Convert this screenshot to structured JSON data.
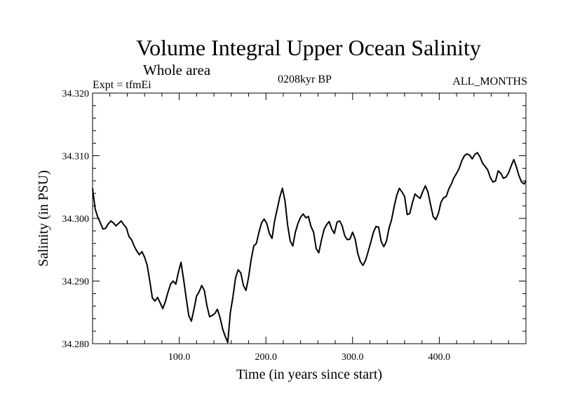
{
  "header": {
    "title": "Volume Integral Upper Ocean Salinity",
    "subtitle": "Whole area",
    "expt": "Expt = tfmEi",
    "period": "0208kyr BP",
    "months": "ALL_MONTHS"
  },
  "chart_data": {
    "type": "line",
    "title": "Volume Integral Upper Ocean Salinity",
    "xlabel": "Time (in years since start)",
    "ylabel": "Salinity (in PSU)",
    "xlim": [
      0,
      500
    ],
    "ylim": [
      34.28,
      34.32
    ],
    "x_ticks": [
      100,
      200,
      300,
      400
    ],
    "x_tick_labels": [
      "100.0",
      "200.0",
      "300.0",
      "400.0"
    ],
    "y_ticks": [
      34.28,
      34.29,
      34.3,
      34.31,
      34.32
    ],
    "y_tick_labels": [
      "34.280",
      "34.290",
      "34.300",
      "34.310",
      "34.320"
    ],
    "series": [
      {
        "color": "#000000",
        "x": [
          0,
          3,
          6,
          9,
          12,
          15,
          18,
          21,
          24,
          27,
          30,
          33,
          36,
          39,
          42,
          45,
          48,
          51,
          54,
          57,
          60,
          63,
          66,
          69,
          72,
          75,
          78,
          81,
          84,
          87,
          90,
          93,
          96,
          99,
          102,
          105,
          108,
          111,
          114,
          117,
          120,
          123,
          126,
          129,
          132,
          135,
          138,
          141,
          144,
          147,
          150,
          153,
          156,
          159,
          162,
          165,
          168,
          171,
          174,
          177,
          180,
          183,
          186,
          189,
          192,
          195,
          198,
          201,
          204,
          207,
          210,
          213,
          216,
          219,
          222,
          225,
          228,
          231,
          234,
          237,
          240,
          243,
          246,
          249,
          252,
          255,
          258,
          261,
          264,
          267,
          270,
          273,
          276,
          279,
          282,
          285,
          288,
          291,
          294,
          297,
          300,
          303,
          306,
          309,
          312,
          315,
          318,
          321,
          324,
          327,
          330,
          333,
          336,
          339,
          342,
          345,
          348,
          351,
          354,
          357,
          360,
          363,
          366,
          369,
          372,
          375,
          378,
          381,
          384,
          387,
          390,
          393,
          396,
          399,
          402,
          405,
          408,
          411,
          414,
          417,
          420,
          423,
          426,
          429,
          432,
          435,
          438,
          441,
          444,
          447,
          450,
          453,
          456,
          459,
          462,
          465,
          468,
          471,
          474,
          477,
          480,
          483,
          486,
          489,
          492,
          495,
          498,
          500
        ],
        "y": [
          34.3048,
          34.3015,
          34.3002,
          34.2993,
          34.2983,
          34.2984,
          34.2991,
          34.2996,
          34.2993,
          34.2988,
          34.2992,
          34.2996,
          34.299,
          34.2985,
          34.2971,
          34.2966,
          34.2956,
          34.2948,
          34.2942,
          34.2947,
          34.2938,
          34.2925,
          34.29,
          34.2873,
          34.2868,
          34.2874,
          34.2865,
          34.2856,
          34.2867,
          34.2882,
          34.2895,
          34.29,
          34.2895,
          34.2914,
          34.293,
          34.2903,
          34.2873,
          34.2845,
          34.2836,
          34.2855,
          34.2876,
          34.2883,
          34.2893,
          34.2885,
          34.286,
          34.2843,
          34.2845,
          34.2848,
          34.2855,
          34.2842,
          34.2824,
          34.2812,
          34.2802,
          34.285,
          34.2875,
          34.2905,
          34.2918,
          34.2913,
          34.2893,
          34.2885,
          34.2906,
          34.2935,
          34.2956,
          34.296,
          34.2978,
          34.2993,
          34.2999,
          34.2992,
          34.2976,
          34.2968,
          34.2996,
          34.3015,
          34.3034,
          34.3048,
          34.3028,
          34.299,
          34.2964,
          34.2956,
          34.2978,
          34.2992,
          34.3002,
          34.3007,
          34.3001,
          34.3003,
          34.2987,
          34.2978,
          34.2952,
          34.2945,
          34.2965,
          34.2982,
          34.299,
          34.2995,
          34.2983,
          34.2976,
          34.2994,
          34.2996,
          34.2988,
          34.2972,
          34.2966,
          34.2967,
          34.2978,
          34.2967,
          34.2944,
          34.2931,
          34.2925,
          34.2933,
          34.2947,
          34.2962,
          34.2978,
          34.2987,
          34.2986,
          34.2963,
          34.2955,
          34.2963,
          34.2984,
          34.2998,
          34.3019,
          34.3037,
          34.3048,
          34.3042,
          34.3035,
          34.3006,
          34.3008,
          34.3025,
          34.3039,
          34.3035,
          34.3032,
          34.3043,
          34.3052,
          34.3042,
          34.3022,
          34.3003,
          34.2998,
          34.3008,
          34.3026,
          34.3033,
          34.3035,
          34.3047,
          34.3055,
          34.3065,
          34.3072,
          34.308,
          34.3092,
          34.31,
          34.3103,
          34.3101,
          34.3095,
          34.3102,
          34.3105,
          34.3098,
          34.3088,
          34.3083,
          34.3077,
          34.3065,
          34.3058,
          34.306,
          34.3076,
          34.3072,
          34.3064,
          34.3066,
          34.3073,
          34.3084,
          34.3094,
          34.3082,
          34.3068,
          34.3058,
          34.3055,
          34.306
        ]
      }
    ]
  }
}
